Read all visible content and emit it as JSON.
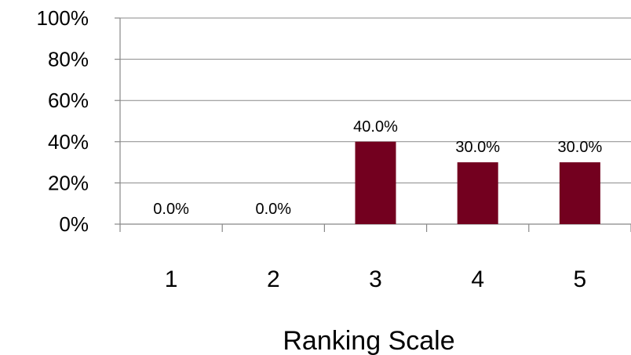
{
  "chart_data": {
    "type": "bar",
    "categories": [
      "1",
      "2",
      "3",
      "4",
      "5"
    ],
    "values": [
      0.0,
      0.0,
      40.0,
      30.0,
      30.0
    ],
    "data_labels": [
      "0.0%",
      "0.0%",
      "40.0%",
      "30.0%",
      "30.0%"
    ],
    "title": "",
    "xlabel": "Ranking Scale",
    "ylabel": "",
    "ylim": [
      0,
      100
    ],
    "y_ticks": [
      0,
      20,
      40,
      60,
      80,
      100
    ],
    "y_tick_labels": [
      "0%",
      "20%",
      "40%",
      "60%",
      "80%",
      "100%"
    ],
    "grid": true,
    "legend": "none",
    "bar_color": "#73001f"
  }
}
